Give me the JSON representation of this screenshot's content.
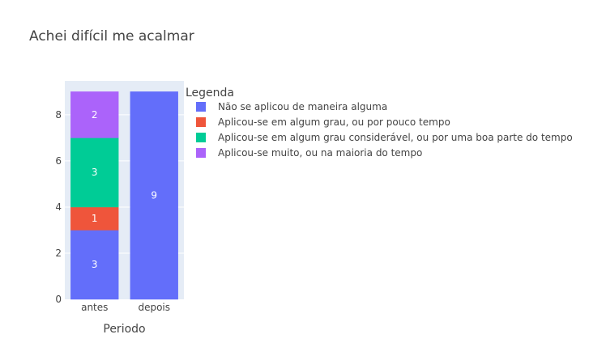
{
  "chart_data": {
    "type": "bar",
    "barmode": "stack",
    "title": "Achei difícil me acalmar",
    "xlabel": "Periodo",
    "ylabel": "",
    "categories": [
      "antes",
      "depois"
    ],
    "ylim": [
      0,
      9.47
    ],
    "yticks": [
      0,
      2,
      4,
      6,
      8
    ],
    "grid": true,
    "legend": {
      "title": "Legenda",
      "placement": "right"
    },
    "series": [
      {
        "name": "Não se aplicou de maneira alguma",
        "color": "#636efa",
        "values": [
          3,
          9
        ]
      },
      {
        "name": "Aplicou-se em algum grau, ou por pouco tempo",
        "color": "#ef553b",
        "values": [
          1,
          null
        ]
      },
      {
        "name": "Aplicou-se em algum grau considerável, ou por uma boa parte do tempo",
        "color": "#00cc96",
        "values": [
          3,
          null
        ]
      },
      {
        "name": "Aplicou-se muito, ou na maioria do tempo",
        "color": "#ab63fa",
        "values": [
          2,
          null
        ]
      }
    ]
  }
}
